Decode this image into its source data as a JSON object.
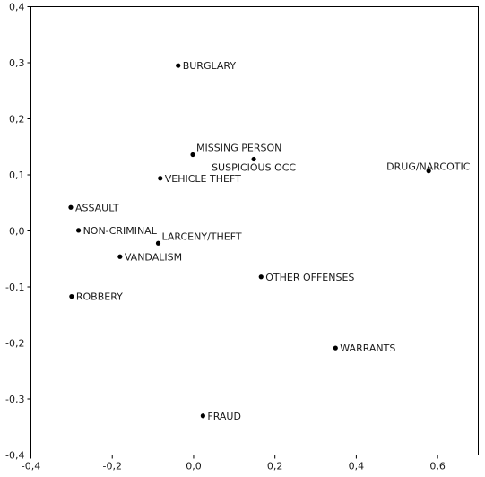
{
  "chart_data": {
    "type": "scatter",
    "title": "",
    "xlabel": "",
    "ylabel": "",
    "xlim": [
      -0.4,
      0.7
    ],
    "ylim": [
      -0.4,
      0.4
    ],
    "grid": false,
    "x_ticks": [
      -0.4,
      -0.2,
      0.0,
      0.2,
      0.4,
      0.6
    ],
    "y_ticks": [
      0.4,
      0.3,
      0.2,
      0.1,
      0.0,
      -0.1,
      -0.2,
      -0.3,
      -0.4
    ],
    "x_tick_labels": [
      "-0,4",
      "-0,2",
      "0,0",
      "0,2",
      "0,4",
      "0,6"
    ],
    "y_tick_labels": [
      "0,4",
      "0,3",
      "0,2",
      "0,1",
      "0,0",
      "-0,1",
      "-0,2",
      "-0,3",
      "-0,4"
    ],
    "points": [
      {
        "label": "BURGLARY",
        "x": -0.038,
        "y": 0.295,
        "label_pos": "right"
      },
      {
        "label": "MISSING PERSON",
        "x": -0.002,
        "y": 0.136,
        "label_pos": "upper-right"
      },
      {
        "label": "SUSPICIOUS OCC",
        "x": 0.148,
        "y": 0.128,
        "label_pos": "below-left"
      },
      {
        "label": "DRUG/NARCOTIC",
        "x": 0.578,
        "y": 0.107,
        "label_pos": "above-left"
      },
      {
        "label": "VEHICLE THEFT",
        "x": -0.082,
        "y": 0.094,
        "label_pos": "right"
      },
      {
        "label": "ASSAULT",
        "x": -0.302,
        "y": 0.042,
        "label_pos": "right"
      },
      {
        "label": "NON-CRIMINAL",
        "x": -0.283,
        "y": 0.001,
        "label_pos": "right"
      },
      {
        "label": "LARCENY/THEFT",
        "x": -0.087,
        "y": -0.022,
        "label_pos": "upper-right"
      },
      {
        "label": "VANDALISM",
        "x": -0.181,
        "y": -0.046,
        "label_pos": "right"
      },
      {
        "label": "OTHER OFFENSES",
        "x": 0.166,
        "y": -0.082,
        "label_pos": "right"
      },
      {
        "label": "ROBBERY",
        "x": -0.3,
        "y": -0.117,
        "label_pos": "right"
      },
      {
        "label": "WARRANTS",
        "x": 0.349,
        "y": -0.209,
        "label_pos": "right"
      },
      {
        "label": "FRAUD",
        "x": 0.023,
        "y": -0.33,
        "label_pos": "right"
      }
    ]
  }
}
